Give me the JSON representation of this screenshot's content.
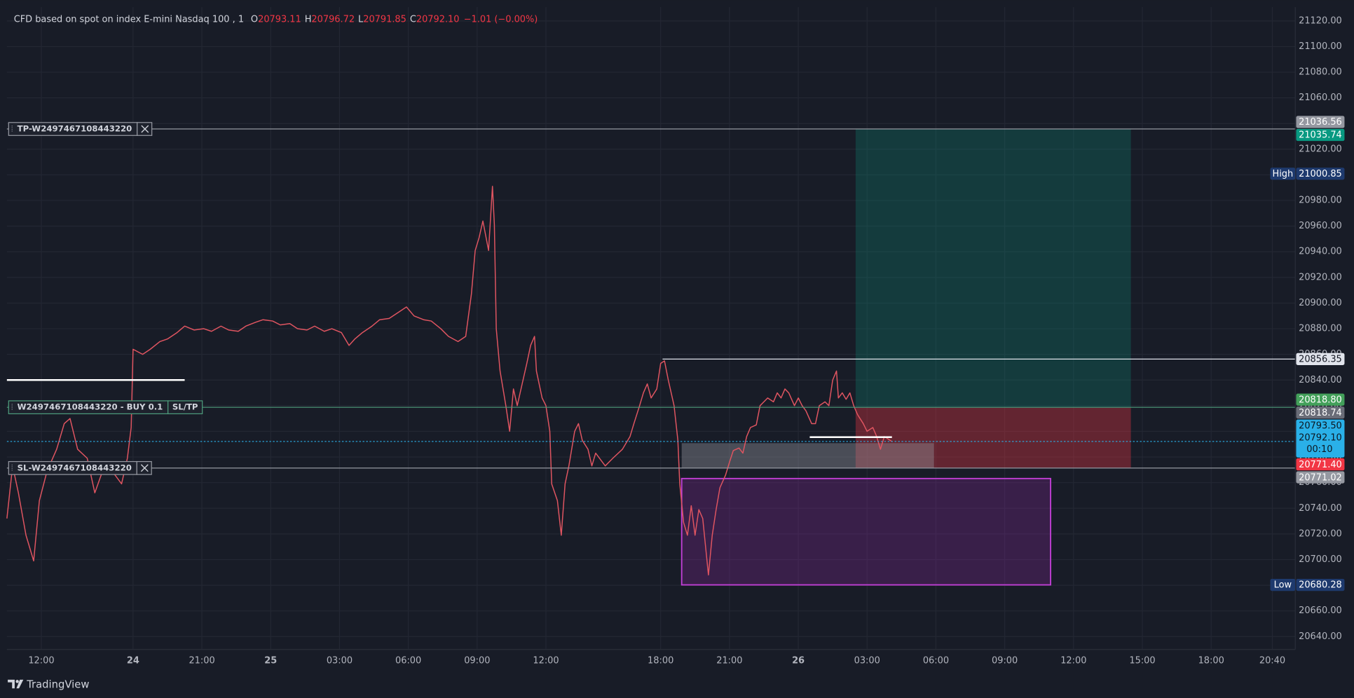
{
  "chart_data": {
    "type": "line",
    "title": "CFD based on spot on index E-mini Nasdaq 100 , 1",
    "ohlc": [
      {
        "key": "O",
        "value": 20793.11,
        "label": "20793.11"
      },
      {
        "key": "H",
        "value": 20796.72,
        "label": "20796.72"
      },
      {
        "key": "L",
        "value": 20791.85,
        "label": "20791.85"
      },
      {
        "key": "C",
        "value": 20792.1,
        "label": "20792.10"
      }
    ],
    "change": {
      "value": -1.01,
      "label": "−1.01 (−0.00%)"
    },
    "color": "#e05561",
    "x": [
      0,
      3,
      6,
      10,
      14,
      17,
      21,
      26,
      30,
      33,
      37,
      42,
      46,
      51,
      55,
      60,
      63,
      65,
      66,
      71,
      75,
      80,
      84,
      89,
      93,
      98,
      103,
      107,
      112,
      116,
      121,
      125,
      130,
      134,
      139,
      143,
      148,
      152,
      157,
      161,
      166,
      170,
      175,
      179,
      182,
      186,
      191,
      195,
      200,
      204,
      209,
      213,
      218,
      222,
      227,
      231,
      236,
      240,
      243,
      245,
      247,
      249,
      252,
      254,
      255,
      256,
      258,
      261,
      263,
      265,
      267,
      270,
      272,
      274,
      276,
      277,
      280,
      282,
      284,
      285,
      288,
      290,
      292,
      294,
      297,
      299,
      301,
      304,
      306,
      308,
      310,
      313,
      317,
      322,
      326,
      328,
      331,
      333,
      335,
      337,
      340,
      342,
      344,
      346,
      349,
      351,
      352,
      354,
      356,
      358,
      360,
      362,
      364,
      367,
      369,
      371,
      373,
      376,
      378,
      380,
      383,
      385,
      387,
      389,
      392,
      394,
      396,
      398,
      401,
      403,
      405,
      407,
      409,
      412,
      414,
      416,
      418,
      421,
      423,
      425,
      428,
      430,
      432,
      434,
      435,
      437,
      439,
      441,
      443,
      445,
      448,
      450,
      453,
      455,
      457,
      459,
      462,
      463
    ],
    "values": [
      20732,
      20773,
      20752,
      20719,
      20699,
      20746,
      20769,
      20786,
      20806,
      20810,
      20786,
      20779,
      20752,
      20773,
      20769,
      20759,
      20779,
      20803,
      20864,
      20860,
      20864,
      20870,
      20872,
      20877,
      20882,
      20879,
      20880,
      20878,
      20882,
      20879,
      20878,
      20882,
      20885,
      20887,
      20886,
      20883,
      20884,
      20880,
      20879,
      20882,
      20878,
      20880,
      20877,
      20867,
      20872,
      20877,
      20882,
      20887,
      20888,
      20892,
      20897,
      20890,
      20887,
      20886,
      20880,
      20874,
      20870,
      20874,
      20907,
      20941,
      20951,
      20964,
      20941,
      20991,
      20961,
      20880,
      20847,
      20820,
      20800,
      20833,
      20820,
      20840,
      20853,
      20867,
      20874,
      20847,
      20826,
      20820,
      20800,
      20759,
      20746,
      20719,
      20759,
      20773,
      20800,
      20806,
      20793,
      20786,
      20773,
      20783,
      20779,
      20773,
      20779,
      20786,
      20796,
      20806,
      20820,
      20830,
      20837,
      20826,
      20833,
      20853,
      20855,
      20840,
      20820,
      20793,
      20759,
      20729,
      20719,
      20742,
      20719,
      20739,
      20732,
      20688,
      20719,
      20739,
      20756,
      20766,
      20776,
      20785,
      20787,
      20783,
      20796,
      20803,
      20805,
      20820,
      20823,
      20826,
      20823,
      20830,
      20826,
      20833,
      20830,
      20820,
      20826,
      20820,
      20816,
      20806,
      20806,
      20820,
      20823,
      20820,
      20840,
      20847,
      20826,
      20830,
      20825,
      20830,
      20820,
      20813,
      20806,
      20800,
      20803,
      20796,
      20786,
      20796,
      20793,
      20792.1
    ],
    "xlim": [
      0,
      674
    ],
    "ylim": [
      20629.9,
      21130.8
    ],
    "grid": true,
    "xticks": [
      {
        "value": 18,
        "label": "12:00"
      },
      {
        "value": 66,
        "label": "24"
      },
      {
        "value": 102,
        "label": "21:00"
      },
      {
        "value": 138,
        "label": "25"
      },
      {
        "value": 174,
        "label": "03:00"
      },
      {
        "value": 210,
        "label": "06:00"
      },
      {
        "value": 246,
        "label": "09:00"
      },
      {
        "value": 282,
        "label": "12:00"
      },
      {
        "value": 342,
        "label": "18:00"
      },
      {
        "value": 378,
        "label": "21:00"
      },
      {
        "value": 414,
        "label": "26"
      },
      {
        "value": 450,
        "label": "03:00"
      },
      {
        "value": 486,
        "label": "06:00"
      },
      {
        "value": 522,
        "label": "09:00"
      },
      {
        "value": 558,
        "label": "12:00"
      },
      {
        "value": 594,
        "label": "15:00"
      },
      {
        "value": 630,
        "label": "18:00"
      },
      {
        "value": 662,
        "label": "20:40"
      }
    ],
    "yticks": [
      {
        "value": 20640,
        "label": "20640.00"
      },
      {
        "value": 20660,
        "label": "20660.00"
      },
      {
        "value": 20680,
        "label": "20680.00"
      },
      {
        "value": 20700,
        "label": "20700.00"
      },
      {
        "value": 20720,
        "label": "20720.00"
      },
      {
        "value": 20740,
        "label": "20740.00"
      },
      {
        "value": 20760,
        "label": "20760.00"
      },
      {
        "value": 20780,
        "label": "20780.00"
      },
      {
        "value": 20800,
        "label": "20800.00"
      },
      {
        "value": 20820,
        "label": "20820.00"
      },
      {
        "value": 20840,
        "label": "20840.00"
      },
      {
        "value": 20860,
        "label": "20860.00"
      },
      {
        "value": 20880,
        "label": "20880.00"
      },
      {
        "value": 20900,
        "label": "20900.00"
      },
      {
        "value": 20920,
        "label": "20920.00"
      },
      {
        "value": 20940,
        "label": "20940.00"
      },
      {
        "value": 20960,
        "label": "20960.00"
      },
      {
        "value": 20980,
        "label": "20980.00"
      },
      {
        "value": 21000,
        "label": "21000.00"
      },
      {
        "value": 21020,
        "label": "21020.00"
      },
      {
        "value": 21040,
        "label": "21040.00"
      },
      {
        "value": 21060,
        "label": "21060.00"
      },
      {
        "value": 21080,
        "label": "21080.00"
      },
      {
        "value": 21100,
        "label": "21100.00"
      },
      {
        "value": 21120,
        "label": "21120.00"
      }
    ],
    "zones": [
      {
        "x": [
          444,
          588
        ],
        "y": [
          21035.74,
          20818.74
        ],
        "color": "#089981",
        "opacity": 0.25
      },
      {
        "x": [
          444,
          588
        ],
        "y": [
          20818.74,
          20771.4
        ],
        "color": "#f23645",
        "opacity": 0.35
      },
      {
        "x": [
          353,
          485
        ],
        "y": [
          20790.8,
          20771.4
        ],
        "color": "#9598a1",
        "opacity": 0.4
      },
      {
        "x": [
          353,
          546
        ],
        "y": [
          20763.2,
          20680.28
        ],
        "color": "#9c27b0",
        "opacity": 0.25,
        "border": "#c23fd6"
      }
    ],
    "lines": [
      {
        "value": 21035.74,
        "x": [
          0,
          674
        ],
        "color": "#9598a1",
        "order": {
          "label": "TP-W2497467108443220",
          "close": true
        }
      },
      {
        "value": 20818.74,
        "x": [
          0,
          674
        ],
        "color": "#4d9c7c",
        "order": {
          "label": "W2497467108443220 - BUY 0.1",
          "action": "SL/TP"
        }
      },
      {
        "value": 20771.4,
        "x": [
          0,
          674
        ],
        "color": "#9598a1",
        "order": {
          "label": "SL-W2497467108443220",
          "close": true
        }
      },
      {
        "value": 20856.35,
        "x": [
          343,
          674
        ],
        "color": "#e0e3eb"
      },
      {
        "value": 20840,
        "x": [
          0,
          93
        ],
        "color": "#ffffff",
        "width": 2
      },
      {
        "value": 20795.5,
        "x": [
          420,
          463
        ],
        "color": "#ffffff",
        "width": 2
      },
      {
        "value": 20792.1,
        "x": [
          0,
          674
        ],
        "color": "#2ab0e8",
        "dash": true
      }
    ],
    "badges": [
      {
        "value": 21036.56,
        "label": "21036.56",
        "color": "#9598a1"
      },
      {
        "value": 21035.74,
        "label": "21035.74",
        "color": "#089981"
      },
      {
        "value": 21000.85,
        "label": "21000.85",
        "tag": "High",
        "color": "#1e3a6e"
      },
      {
        "value": 20856.35,
        "label": "20856.35",
        "color": "#e0e3eb",
        "text_color": "#131722"
      },
      {
        "value": 20818.8,
        "label": "20818.80",
        "color": "#43a05a"
      },
      {
        "value": 20818.74,
        "label": "20818.74",
        "color": "#6a6d78"
      },
      {
        "value": 20792.1,
        "label": "20792.10",
        "above": {
          "value": 20793.5,
          "label": "20793.50"
        },
        "countdown": "00:10",
        "color": "#2ab0e8",
        "text_color": "#0c1620"
      },
      {
        "value": 20771.4,
        "label": "20771.40",
        "color": "#f23645"
      },
      {
        "value": 20771.02,
        "label": "20771.02",
        "color": "#9598a1"
      },
      {
        "value": 20680.28,
        "label": "20680.28",
        "tag": "Low",
        "color": "#1e3a6e"
      }
    ]
  },
  "footer": "TradingView"
}
